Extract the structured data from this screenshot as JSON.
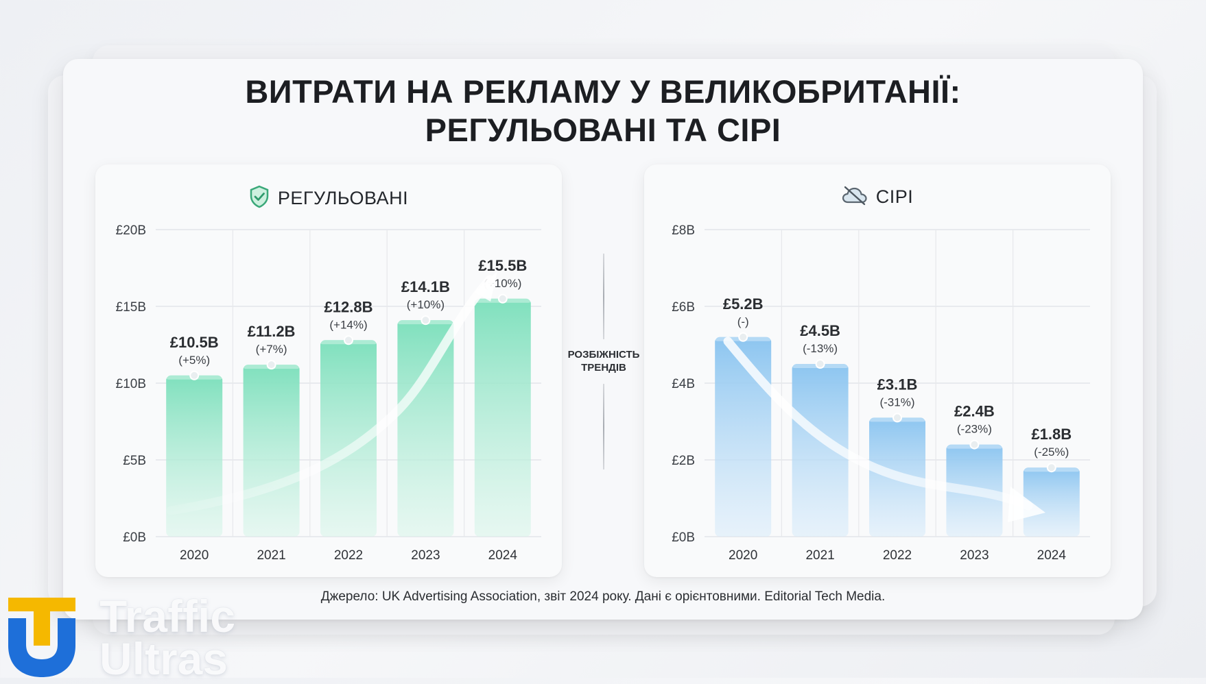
{
  "title_line1": "ВИТРАТИ НА РЕКЛАМУ У ВЕЛИКОБРИТАНІЇ:",
  "title_line2": "РЕГУЛЬОВАНІ ТА СІРІ",
  "divider": {
    "line1": "РОЗБІЖНІСТЬ",
    "line2": "ТРЕНДІВ"
  },
  "source": "Джерело: UK Advertising Association, звіт 2024 року. Дані є орієнтовними. Editorial Tech Media.",
  "logo": {
    "line1": "Traffic",
    "line2": "Ultras",
    "icon": "tu-logo-icon",
    "colors": [
      "#f5b800",
      "#1e6fd9"
    ]
  },
  "panels": {
    "left": {
      "heading": "РЕГУЛЬОВАНІ",
      "icon": "shield-check-icon",
      "accent": "#5fd3a6"
    },
    "right": {
      "heading": "СІРІ",
      "icon": "cloud-off-icon",
      "accent": "#7fb9ea"
    }
  },
  "chart_data": [
    {
      "type": "bar",
      "title": "РЕГУЛЬОВАНІ",
      "categories": [
        "2020",
        "2021",
        "2022",
        "2023",
        "2024"
      ],
      "values": [
        10.5,
        11.2,
        12.8,
        14.1,
        15.5
      ],
      "value_labels": [
        "£10.5B",
        "£11.2B",
        "£12.8B",
        "£14.1B",
        "£15.5B"
      ],
      "change_labels": [
        "(+5%)",
        "(+7%)",
        "(+14%)",
        "(+10%)",
        "(+10%)"
      ],
      "y_ticks": [
        "£0B",
        "£5B",
        "£10B",
        "£15B",
        "£20B"
      ],
      "ylim": [
        0,
        20
      ],
      "trend": "up",
      "bar_color": "#7fe0bd",
      "grid": true
    },
    {
      "type": "bar",
      "title": "СІРІ",
      "categories": [
        "2020",
        "2021",
        "2022",
        "2023",
        "2024"
      ],
      "values": [
        5.2,
        4.5,
        3.1,
        2.4,
        1.8
      ],
      "value_labels": [
        "£5.2B",
        "£4.5B",
        "£3.1B",
        "£2.4B",
        "£1.8B"
      ],
      "change_labels": [
        "(-)",
        "(-13%)",
        "(-31%)",
        "(-23%)",
        "(-25%)"
      ],
      "y_ticks": [
        "£0B",
        "£2B",
        "£4B",
        "£6B",
        "£8B"
      ],
      "ylim": [
        0,
        8
      ],
      "trend": "down",
      "bar_color": "#8cc5f0",
      "grid": true
    }
  ]
}
